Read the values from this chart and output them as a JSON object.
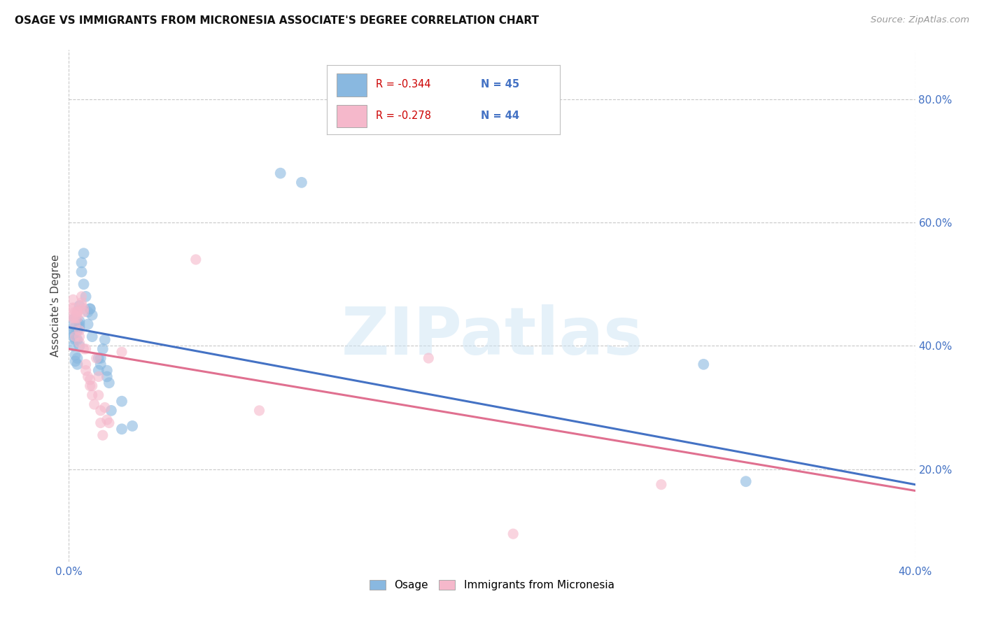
{
  "title": "OSAGE VS IMMIGRANTS FROM MICRONESIA ASSOCIATE'S DEGREE CORRELATION CHART",
  "source": "Source: ZipAtlas.com",
  "ylabel": "Associate's Degree",
  "xlim": [
    0.0,
    0.4
  ],
  "ylim": [
    0.05,
    0.88
  ],
  "xtick_labels": [
    "0.0%",
    "",
    "",
    "",
    "40.0%"
  ],
  "xtick_vals": [
    0.0,
    0.1,
    0.2,
    0.3,
    0.4
  ],
  "ytick_labels": [
    "20.0%",
    "40.0%",
    "60.0%",
    "80.0%"
  ],
  "ytick_vals": [
    0.2,
    0.4,
    0.6,
    0.8
  ],
  "grid_color": "#c8c8c8",
  "background_color": "#ffffff",
  "legend_R_blue": "-0.344",
  "legend_N_blue": "45",
  "legend_R_pink": "-0.278",
  "legend_N_pink": "44",
  "blue_color": "#89b8e0",
  "pink_color": "#f5b8cb",
  "line_blue": "#4472c4",
  "line_pink": "#e07090",
  "watermark": "ZIPatlas",
  "blue_scatter": [
    [
      0.002,
      0.435
    ],
    [
      0.002,
      0.415
    ],
    [
      0.002,
      0.42
    ],
    [
      0.002,
      0.4
    ],
    [
      0.003,
      0.43
    ],
    [
      0.003,
      0.41
    ],
    [
      0.003,
      0.385
    ],
    [
      0.003,
      0.375
    ],
    [
      0.004,
      0.425
    ],
    [
      0.004,
      0.37
    ],
    [
      0.004,
      0.41
    ],
    [
      0.004,
      0.38
    ],
    [
      0.005,
      0.44
    ],
    [
      0.005,
      0.43
    ],
    [
      0.005,
      0.4
    ],
    [
      0.005,
      0.465
    ],
    [
      0.005,
      0.435
    ],
    [
      0.006,
      0.52
    ],
    [
      0.006,
      0.535
    ],
    [
      0.007,
      0.5
    ],
    [
      0.007,
      0.55
    ],
    [
      0.008,
      0.48
    ],
    [
      0.009,
      0.455
    ],
    [
      0.009,
      0.435
    ],
    [
      0.01,
      0.46
    ],
    [
      0.01,
      0.46
    ],
    [
      0.011,
      0.415
    ],
    [
      0.011,
      0.45
    ],
    [
      0.014,
      0.38
    ],
    [
      0.014,
      0.36
    ],
    [
      0.015,
      0.37
    ],
    [
      0.015,
      0.38
    ],
    [
      0.016,
      0.395
    ],
    [
      0.017,
      0.41
    ],
    [
      0.018,
      0.36
    ],
    [
      0.018,
      0.35
    ],
    [
      0.019,
      0.34
    ],
    [
      0.02,
      0.295
    ],
    [
      0.025,
      0.31
    ],
    [
      0.025,
      0.265
    ],
    [
      0.03,
      0.27
    ],
    [
      0.1,
      0.68
    ],
    [
      0.11,
      0.665
    ],
    [
      0.3,
      0.37
    ],
    [
      0.32,
      0.18
    ]
  ],
  "pink_scatter": [
    [
      0.002,
      0.455
    ],
    [
      0.002,
      0.445
    ],
    [
      0.002,
      0.475
    ],
    [
      0.002,
      0.46
    ],
    [
      0.003,
      0.455
    ],
    [
      0.003,
      0.445
    ],
    [
      0.003,
      0.435
    ],
    [
      0.003,
      0.415
    ],
    [
      0.004,
      0.455
    ],
    [
      0.004,
      0.445
    ],
    [
      0.004,
      0.455
    ],
    [
      0.005,
      0.425
    ],
    [
      0.005,
      0.415
    ],
    [
      0.005,
      0.405
    ],
    [
      0.006,
      0.48
    ],
    [
      0.006,
      0.47
    ],
    [
      0.006,
      0.465
    ],
    [
      0.007,
      0.46
    ],
    [
      0.007,
      0.455
    ],
    [
      0.007,
      0.395
    ],
    [
      0.008,
      0.395
    ],
    [
      0.008,
      0.37
    ],
    [
      0.008,
      0.36
    ],
    [
      0.009,
      0.35
    ],
    [
      0.01,
      0.345
    ],
    [
      0.01,
      0.335
    ],
    [
      0.011,
      0.335
    ],
    [
      0.011,
      0.32
    ],
    [
      0.012,
      0.305
    ],
    [
      0.013,
      0.38
    ],
    [
      0.014,
      0.35
    ],
    [
      0.014,
      0.32
    ],
    [
      0.015,
      0.295
    ],
    [
      0.015,
      0.275
    ],
    [
      0.016,
      0.255
    ],
    [
      0.017,
      0.3
    ],
    [
      0.018,
      0.28
    ],
    [
      0.019,
      0.275
    ],
    [
      0.025,
      0.39
    ],
    [
      0.06,
      0.54
    ],
    [
      0.09,
      0.295
    ],
    [
      0.17,
      0.38
    ],
    [
      0.21,
      0.095
    ],
    [
      0.28,
      0.175
    ]
  ],
  "blue_line_x": [
    0.0,
    0.4
  ],
  "blue_line_y": [
    0.43,
    0.175
  ],
  "pink_line_x": [
    0.0,
    0.4
  ],
  "pink_line_y": [
    0.395,
    0.165
  ]
}
